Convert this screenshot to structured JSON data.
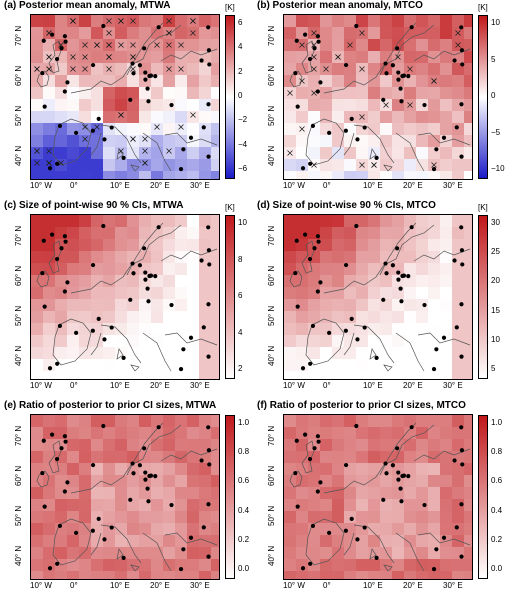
{
  "panels": [
    {
      "id": "a",
      "title": "(a) Posterior mean anomaly, MTWA",
      "unit": "[K]",
      "scale": "diverging",
      "ticks": [
        "6",
        "4",
        "2",
        "0",
        "−2",
        "−4",
        "−6"
      ]
    },
    {
      "id": "b",
      "title": "(b) Posterior mean anomaly, MTCO",
      "unit": "[K]",
      "scale": "diverging",
      "ticks": [
        "10",
        "5",
        "0",
        "−5",
        "−10"
      ]
    },
    {
      "id": "c",
      "title": "(c) Size of point-wise 90 % CIs, MTWA",
      "unit": "[K]",
      "scale": "sequential",
      "ticks": [
        "10",
        "8",
        "6",
        "4",
        "2"
      ]
    },
    {
      "id": "d",
      "title": "(d) Size of point-wise 90 % CIs, MTCO",
      "unit": "[K]",
      "scale": "sequential",
      "ticks": [
        "30",
        "25",
        "20",
        "15",
        "10",
        "5"
      ]
    },
    {
      "id": "e",
      "title": "(e) Ratio of posterior to prior CI sizes, MTWA",
      "unit": "",
      "scale": "sequential",
      "ticks": [
        "1.0",
        "0.8",
        "0.6",
        "0.4",
        "0.2",
        "0.0"
      ]
    },
    {
      "id": "f",
      "title": "(f) Ratio of posterior to prior CI sizes, MTCO",
      "unit": "",
      "scale": "sequential",
      "ticks": [
        "1.0",
        "0.8",
        "0.6",
        "0.4",
        "0.2",
        "0.0"
      ]
    }
  ],
  "axes": {
    "yticks": [
      "70° N",
      "60° N",
      "50° N",
      "40° N"
    ],
    "xticks": [
      "10° W",
      "0°",
      "10° E",
      "20° E",
      "30° E"
    ]
  },
  "colors": {
    "red": "#c0181b",
    "blue": "#1a1ac8",
    "white": "#ffffff",
    "coast": "#555555"
  }
}
